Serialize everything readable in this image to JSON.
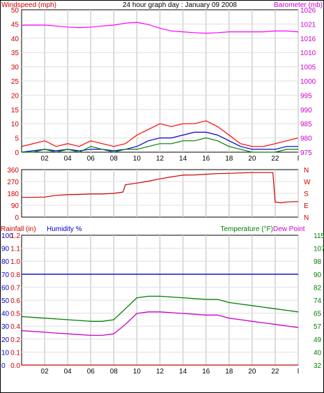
{
  "chart_data": [
    {
      "id": "wind_baro",
      "type": "line",
      "title": "24 hour graph day : January 09 2008",
      "left_axis": {
        "label": "Windspeed (mph)",
        "color": "#cc0000",
        "ticks": [
          "0",
          "5",
          "10",
          "15",
          "20",
          "25",
          "30",
          "35",
          "40",
          "45",
          "50"
        ],
        "ylim": [
          0,
          50
        ]
      },
      "right_axis": {
        "label": "Barometer (mb)",
        "color": "#cc00cc",
        "ticks": [
          "975",
          "980",
          "985",
          "990",
          "995",
          "1000",
          "1005",
          "1010",
          "1016",
          "1021",
          "1026"
        ],
        "ylim": [
          975,
          1026
        ]
      },
      "x_ticks": [
        "02",
        "04",
        "06",
        "08",
        "10",
        "12",
        "14",
        "16",
        "18",
        "20",
        "22",
        "l"
      ],
      "series": [
        {
          "color": "#ff00ff",
          "axis": "right",
          "x": [
            0,
            1,
            2,
            3,
            4,
            5,
            6,
            7,
            8,
            9,
            10,
            11,
            12,
            13,
            14,
            15,
            16,
            17,
            18,
            19,
            20,
            21,
            22,
            23,
            24
          ],
          "values": [
            1020.5,
            1020.5,
            1020.5,
            1020.2,
            1019.8,
            1019.6,
            1019.8,
            1020.2,
            1020.5,
            1021.2,
            1021.5,
            1020.7,
            1019.4,
            1018.4,
            1018.1,
            1017.8,
            1017.6,
            1017.8,
            1018.1,
            1018.1,
            1018.1,
            1018.1,
            1018.4,
            1018.4,
            1018.1
          ]
        },
        {
          "color": "#ff0000",
          "axis": "left",
          "x": [
            0,
            1,
            2,
            3,
            4,
            5,
            6,
            7,
            8,
            9,
            10,
            11,
            12,
            13,
            14,
            15,
            16,
            17,
            18,
            19,
            20,
            21,
            22,
            23,
            24
          ],
          "values": [
            2,
            3,
            4,
            2,
            3,
            2,
            4,
            3,
            2,
            3,
            6,
            8,
            10,
            9,
            10,
            10,
            11,
            9,
            6,
            3,
            2,
            2,
            3,
            4,
            5
          ]
        },
        {
          "color": "#0000cc",
          "axis": "left",
          "x": [
            0,
            1,
            2,
            3,
            4,
            5,
            6,
            7,
            8,
            9,
            10,
            11,
            12,
            13,
            14,
            15,
            16,
            17,
            18,
            19,
            20,
            21,
            22,
            23,
            24
          ],
          "values": [
            0,
            0.5,
            1,
            0.5,
            1,
            0.5,
            1,
            1,
            0.5,
            1,
            2,
            4,
            5,
            5,
            6,
            7,
            7,
            6,
            4,
            2,
            1,
            1,
            1,
            2,
            2
          ]
        },
        {
          "color": "#008000",
          "axis": "left",
          "x": [
            0,
            1,
            2,
            3,
            4,
            5,
            6,
            7,
            8,
            9,
            10,
            11,
            12,
            13,
            14,
            15,
            16,
            17,
            18,
            19,
            20,
            21,
            22,
            23,
            24
          ],
          "values": [
            0,
            0,
            1,
            0,
            1,
            0,
            2,
            1,
            0,
            1,
            1,
            2,
            3,
            3,
            4,
            4,
            5,
            4,
            2,
            1,
            0,
            0,
            0,
            1,
            1
          ]
        }
      ]
    },
    {
      "id": "direction",
      "type": "line",
      "left_axis": {
        "ticks": [
          "0",
          "90",
          "180",
          "270",
          "360"
        ],
        "ylim": [
          0,
          360
        ]
      },
      "right_axis": {
        "ticks": [
          "N",
          "E",
          "S",
          "W",
          "N"
        ]
      },
      "x_ticks": [],
      "series": [
        {
          "color": "#cc0000",
          "x": [
            0,
            1,
            2,
            3,
            4,
            5,
            6,
            7,
            8,
            8.8,
            9,
            10,
            11,
            12,
            13,
            14,
            15,
            16,
            17,
            18,
            19,
            20,
            21,
            21.8,
            22,
            22.5,
            23,
            24
          ],
          "values": [
            150,
            150,
            152,
            165,
            170,
            172,
            175,
            175,
            180,
            190,
            245,
            258,
            272,
            290,
            305,
            318,
            320,
            325,
            330,
            332,
            335,
            338,
            338,
            338,
            115,
            108,
            115,
            118
          ]
        }
      ]
    },
    {
      "id": "rain_hum_temp",
      "type": "line",
      "left_axis": {
        "label": "Rainfall (in)",
        "color": "#cc0000",
        "ticks": [
          "0.0",
          "0.1",
          "0.2",
          "0.4",
          "0.5",
          "0.6",
          "0.7",
          "0.8",
          "1.0",
          "1.1",
          "1.2"
        ]
      },
      "humidity_axis": {
        "label": "Humidity %",
        "color": "#0000cc",
        "ticks": [
          "0",
          "10",
          "20",
          "30",
          "40",
          "50",
          "60",
          "70",
          "80",
          "90",
          "100"
        ],
        "ylim": [
          0,
          100
        ]
      },
      "right_axis": {
        "label": "Temperature (°F)",
        "color": "#008000",
        "ticks": [
          "32",
          "40",
          "49",
          "57",
          "65",
          "74",
          "82",
          "90",
          "98",
          "107",
          "115"
        ],
        "ylim": [
          32,
          115
        ]
      },
      "extra_label": {
        "text": "Dew Point",
        "color": "#cc00cc"
      },
      "x_ticks": [
        "02",
        "04",
        "06",
        "08",
        "10",
        "12",
        "14",
        "16",
        "18",
        "20",
        "22",
        "l"
      ],
      "series": [
        {
          "name": "Humidity %",
          "color": "#0000cc",
          "axis": "humidity",
          "x": [
            0,
            24
          ],
          "values": [
            70,
            70
          ]
        },
        {
          "name": "Rainfall (in)",
          "color": "#cc0000",
          "axis": "humidity",
          "x": [
            0,
            24
          ],
          "values": [
            0,
            0
          ]
        },
        {
          "name": "Temperature (°F)",
          "color": "#008000",
          "axis": "right",
          "x": [
            0,
            1,
            2,
            3,
            4,
            5,
            6,
            7,
            8,
            9,
            10,
            11,
            12,
            13,
            14,
            15,
            16,
            17,
            18,
            19,
            20,
            21,
            22,
            23,
            24
          ],
          "values": [
            63,
            62.5,
            62,
            61.5,
            61,
            60.5,
            60,
            60,
            61,
            68,
            75,
            76,
            76,
            75.5,
            75,
            74.5,
            74,
            74,
            72,
            71,
            70,
            69,
            68,
            67,
            66
          ]
        },
        {
          "name": "Dew Point",
          "color": "#cc00cc",
          "axis": "right",
          "x": [
            0,
            1,
            2,
            3,
            4,
            5,
            6,
            7,
            8,
            9,
            10,
            11,
            12,
            13,
            14,
            15,
            16,
            17,
            18,
            19,
            20,
            21,
            22,
            23,
            24
          ],
          "values": [
            54,
            53.5,
            53,
            52.5,
            52,
            51.5,
            51,
            51,
            52,
            58,
            65,
            66,
            66,
            65.5,
            65,
            64.5,
            64,
            64,
            62,
            61,
            60,
            59,
            58,
            57,
            56
          ]
        }
      ]
    }
  ]
}
